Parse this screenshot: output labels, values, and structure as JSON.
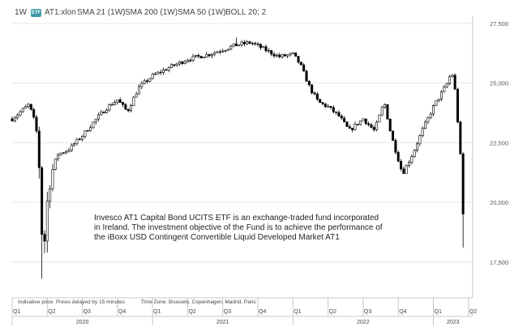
{
  "toolbar": {
    "interval": "1W",
    "etf_badge": "ETF",
    "symbol": "AT1:xlon",
    "indicators": [
      "SMA 21 (1W)",
      "SMA 200 (1W)",
      "SMA 50 (1W)",
      "BOLL 20; 2"
    ]
  },
  "description": "Invesco AT1 Capital Bond UCITS ETF is an exchange-traded fund incorporated in Ireland. The investment objective of the Fund is to achieve the performance of the iBoxx USD Contingent Convertible Liquid Developed Market AT1",
  "footnote": {
    "prices": "Indicative price. Prices delayed by 15 minutes",
    "timezone": "Time Zone: Brussels, Copenhagen, Madrid, Paris"
  },
  "colors": {
    "candle": "#000000",
    "grid": "#e6e6e6",
    "axis": "#c8c8c8"
  },
  "chart_data": {
    "type": "candlestick",
    "interval": "1W",
    "y_axis_side": "right",
    "ylim": [
      16000,
      27800
    ],
    "yticks": [
      17500,
      20000,
      22500,
      25000,
      27500
    ],
    "ytick_labels": [
      "17,500",
      "20,000",
      "22,500",
      "25,000",
      "27,500"
    ],
    "xlim": [
      2020.0,
      2023.28
    ],
    "quarter_ticks": [
      {
        "x": 2020.0,
        "label": "Q1"
      },
      {
        "x": 2020.25,
        "label": "Q2"
      },
      {
        "x": 2020.5,
        "label": "Q3"
      },
      {
        "x": 2020.75,
        "label": "Q4"
      },
      {
        "x": 2021.0,
        "label": "Q1"
      },
      {
        "x": 2021.25,
        "label": "Q2"
      },
      {
        "x": 2021.5,
        "label": "Q3"
      },
      {
        "x": 2021.75,
        "label": "Q4"
      },
      {
        "x": 2022.0,
        "label": "Q1"
      },
      {
        "x": 2022.25,
        "label": "Q2"
      },
      {
        "x": 2022.5,
        "label": "Q3"
      },
      {
        "x": 2022.75,
        "label": "Q4"
      },
      {
        "x": 2023.0,
        "label": "Q1"
      },
      {
        "x": 2023.25,
        "label": "Q2"
      }
    ],
    "year_ticks": [
      {
        "x": 2020.0,
        "label": "2020",
        "center": 2020.5
      },
      {
        "x": 2021.0,
        "label": "2021",
        "center": 2021.5
      },
      {
        "x": 2022.0,
        "label": "2022",
        "center": 2022.5
      },
      {
        "x": 2023.0,
        "label": "2023",
        "center": 2023.14
      }
    ],
    "path": [
      [
        2020.0,
        23500
      ],
      [
        2020.06,
        23800
      ],
      [
        2020.12,
        24100
      ],
      [
        2020.17,
        23200
      ],
      [
        2020.2,
        21000
      ],
      [
        2020.22,
        17200
      ],
      [
        2020.24,
        19500
      ],
      [
        2020.27,
        21000
      ],
      [
        2020.32,
        22000
      ],
      [
        2020.4,
        22200
      ],
      [
        2020.5,
        22800
      ],
      [
        2020.6,
        23500
      ],
      [
        2020.68,
        24000
      ],
      [
        2020.75,
        24300
      ],
      [
        2020.82,
        23800
      ],
      [
        2020.9,
        24800
      ],
      [
        2021.0,
        25300
      ],
      [
        2021.1,
        25600
      ],
      [
        2021.25,
        26000
      ],
      [
        2021.4,
        26200
      ],
      [
        2021.5,
        26400
      ],
      [
        2021.6,
        26600
      ],
      [
        2021.7,
        26700
      ],
      [
        2021.8,
        26400
      ],
      [
        2021.9,
        26100
      ],
      [
        2022.0,
        26200
      ],
      [
        2022.05,
        25800
      ],
      [
        2022.12,
        24800
      ],
      [
        2022.18,
        24200
      ],
      [
        2022.25,
        24000
      ],
      [
        2022.33,
        23600
      ],
      [
        2022.4,
        23000
      ],
      [
        2022.5,
        23500
      ],
      [
        2022.58,
        23000
      ],
      [
        2022.65,
        24200
      ],
      [
        2022.7,
        22800
      ],
      [
        2022.78,
        21200
      ],
      [
        2022.85,
        22000
      ],
      [
        2022.92,
        23000
      ],
      [
        2023.0,
        24000
      ],
      [
        2023.05,
        24500
      ],
      [
        2023.1,
        25000
      ],
      [
        2023.13,
        25500
      ],
      [
        2023.16,
        24500
      ],
      [
        2023.19,
        22000
      ],
      [
        2023.2,
        21800
      ],
      [
        2023.215,
        18800
      ]
    ],
    "extremes": [
      {
        "x": 2020.22,
        "low": 16800
      },
      {
        "x": 2021.6,
        "high": 26900
      },
      {
        "x": 2023.215,
        "low": 18100,
        "high": 19000
      }
    ]
  }
}
